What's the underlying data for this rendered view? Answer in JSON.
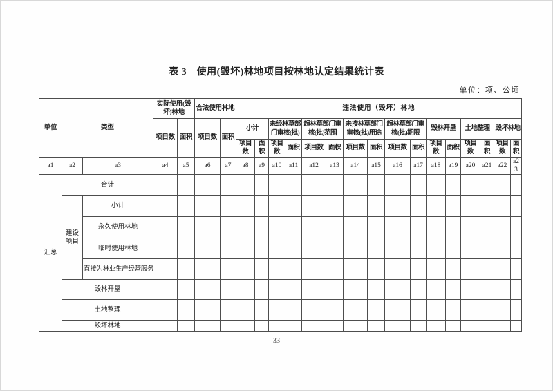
{
  "page": {
    "title": "表 3　使用(毁坏)林地项目按林地认定结果统计表",
    "unit_note": "单位：项、公顷",
    "page_number": "33"
  },
  "table": {
    "header": {
      "unit": "单位",
      "type": "类型",
      "actual_use": "实际使用(毁坏)林地",
      "legal_use": "合法使用林地",
      "illegal_use": "违法使用（毁坏）林地",
      "project_count": "项目数",
      "area": "面积",
      "illegal_groups": [
        "小计",
        "未经林草部门审核(批)",
        "超林草部门审核(批)范围",
        "未按林草部门审核(批)用途",
        "超林草部门审核(批)期限",
        "毁林开垦",
        "土地整理",
        "毁坏林地"
      ]
    },
    "codes": [
      "a1",
      "a2",
      "a3",
      "a4",
      "a5",
      "a6",
      "a7",
      "a8",
      "a9",
      "a10",
      "a11",
      "a12",
      "a13",
      "a14",
      "a15",
      "a16",
      "a17",
      "a18",
      "a19",
      "a20",
      "a21",
      "a22",
      "a23"
    ],
    "rows": {
      "summary": "汇总",
      "total": "合计",
      "construction": "建设项目",
      "subtotal": "小计",
      "permanent": "永久使用林地",
      "temporary": "临时使用林地",
      "direct_service": "直接为林业生产经营服务",
      "reclamation": "毁林开垦",
      "land_consolidation": "土地整理",
      "destroyed": "毁坏林地"
    }
  }
}
